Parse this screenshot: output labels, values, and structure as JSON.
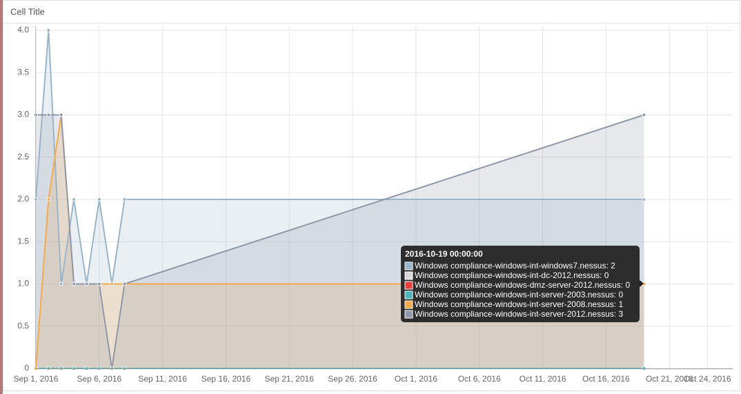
{
  "chart_data": {
    "type": "line",
    "title": "Cell Title",
    "x": [
      "2016-09-01",
      "2016-09-02",
      "2016-09-03",
      "2016-09-04",
      "2016-09-05",
      "2016-09-06",
      "2016-09-07",
      "2016-09-08",
      "2016-10-19"
    ],
    "xlim": [
      "2016-09-01",
      "2016-10-26"
    ],
    "xticks": [
      {
        "value": "2016-09-01",
        "label": "Sep 1, 2016"
      },
      {
        "value": "2016-09-06",
        "label": "Sep 6, 2016"
      },
      {
        "value": "2016-09-11",
        "label": "Sep 11, 2016"
      },
      {
        "value": "2016-09-16",
        "label": "Sep 16, 2016"
      },
      {
        "value": "2016-09-21",
        "label": "Sep 21, 2016"
      },
      {
        "value": "2016-09-26",
        "label": "Sep 26, 2016"
      },
      {
        "value": "2016-10-01",
        "label": "Oct 1, 2016"
      },
      {
        "value": "2016-10-06",
        "label": "Oct 6, 2016"
      },
      {
        "value": "2016-10-11",
        "label": "Oct 11, 2016"
      },
      {
        "value": "2016-10-16",
        "label": "Oct 16, 2016"
      },
      {
        "value": "2016-10-21",
        "label": "Oct 21, 2016"
      },
      {
        "value": "2016-10-24",
        "label": "Oct 24, 2016"
      }
    ],
    "ylim": [
      0,
      4
    ],
    "yticks": [
      0,
      0.5,
      {
        "value": 1,
        "label": "1.0"
      },
      1.5,
      {
        "value": 2,
        "label": "2.0"
      },
      2.5,
      {
        "value": 3,
        "label": "3.0"
      },
      3.5,
      {
        "value": 4,
        "label": "4.0"
      }
    ],
    "grid": true,
    "series": [
      {
        "name": "Windows compliance-windows-int-windows7.nessus",
        "color": "#9ab5c9",
        "values": [
          2,
          4,
          1,
          2,
          1,
          2,
          1,
          2,
          2
        ]
      },
      {
        "name": "Windows compliance-windows-int-dc-2012.nessus",
        "color": "#d9d9d9",
        "values": [
          0,
          0,
          0,
          0,
          0,
          0,
          0,
          0,
          0
        ]
      },
      {
        "name": "Windows compliance-windows-dmz-server-2012.nessus",
        "color": "#e8423f",
        "values": [
          0,
          0,
          0,
          0,
          0,
          0,
          0,
          0,
          0
        ]
      },
      {
        "name": "Windows compliance-windows-int-server-2003.nessus",
        "color": "#4cb3b8",
        "values": [
          0,
          0,
          0,
          0,
          0,
          0,
          0,
          0,
          0
        ]
      },
      {
        "name": "Windows compliance-windows-int-server-2008.nessus",
        "color": "#f5a94a",
        "values": [
          0,
          2,
          3,
          1,
          1,
          1,
          1,
          1,
          1
        ]
      },
      {
        "name": "Windows compliance-windows-int-server-2012.nessus",
        "color": "#8f97a8",
        "values": [
          3,
          3,
          3,
          1,
          1,
          1,
          0,
          1,
          3
        ]
      }
    ],
    "tooltip": {
      "title": "2016-10-19 00:00:00",
      "items": [
        "Windows compliance-windows-int-windows7.nessus: 2",
        "Windows compliance-windows-int-dc-2012.nessus: 0",
        "Windows compliance-windows-dmz-server-2012.nessus: 0",
        "Windows compliance-windows-int-server-2003.nessus: 0",
        "Windows compliance-windows-int-server-2008.nessus: 1",
        "Windows compliance-windows-int-server-2012.nessus: 3"
      ]
    }
  }
}
